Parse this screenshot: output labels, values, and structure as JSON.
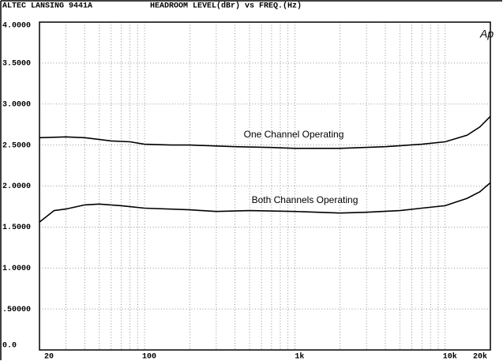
{
  "chart_data": {
    "type": "line",
    "title": "ALTEC LANSING 9441A",
    "subtitle": "HEADROOM LEVEL(dBr) vs FREQ.(Hz)",
    "logo": "Ap",
    "x_log": true,
    "grid": true,
    "xlim": [
      20,
      20000
    ],
    "ylim": [
      0,
      4
    ],
    "xticks": [
      {
        "value": 20,
        "label": "20"
      },
      {
        "value": 100,
        "label": "100"
      },
      {
        "value": 1000,
        "label": "1k"
      },
      {
        "value": 10000,
        "label": "10k"
      },
      {
        "value": 20000,
        "label": "20k"
      }
    ],
    "minor_xticks": [
      30,
      40,
      50,
      60,
      70,
      80,
      90,
      200,
      300,
      400,
      500,
      600,
      700,
      800,
      900,
      2000,
      3000,
      4000,
      5000,
      6000,
      7000,
      8000,
      9000
    ],
    "yticks": [
      {
        "value": 0,
        "label": "0.0"
      },
      {
        "value": 0.5,
        "label": ".50000"
      },
      {
        "value": 1,
        "label": "1.0000"
      },
      {
        "value": 1.5,
        "label": "1.5000"
      },
      {
        "value": 2,
        "label": "2.0000"
      },
      {
        "value": 2.5,
        "label": "2.5000"
      },
      {
        "value": 3,
        "label": "3.0000"
      },
      {
        "value": 3.5,
        "label": "3.5000"
      },
      {
        "value": 4,
        "label": "4.0000"
      }
    ],
    "series": [
      {
        "name": "One Channel Operating",
        "color": "#000000",
        "x": [
          20,
          30,
          40,
          60,
          80,
          100,
          150,
          200,
          400,
          700,
          1000,
          2000,
          4000,
          7000,
          10000,
          14000,
          17000,
          20000
        ],
        "values": [
          2.59,
          2.6,
          2.59,
          2.55,
          2.54,
          2.51,
          2.5,
          2.5,
          2.48,
          2.47,
          2.46,
          2.46,
          2.48,
          2.51,
          2.54,
          2.62,
          2.72,
          2.85
        ]
      },
      {
        "name": "Both Channels Operating",
        "color": "#000000",
        "x": [
          20,
          25,
          30,
          40,
          50,
          70,
          100,
          200,
          300,
          500,
          1000,
          2000,
          3000,
          5000,
          7000,
          10000,
          14000,
          17000,
          20000
        ],
        "values": [
          1.56,
          1.7,
          1.72,
          1.77,
          1.78,
          1.76,
          1.73,
          1.71,
          1.69,
          1.7,
          1.69,
          1.67,
          1.68,
          1.7,
          1.73,
          1.76,
          1.85,
          1.93,
          2.04
        ]
      }
    ]
  }
}
